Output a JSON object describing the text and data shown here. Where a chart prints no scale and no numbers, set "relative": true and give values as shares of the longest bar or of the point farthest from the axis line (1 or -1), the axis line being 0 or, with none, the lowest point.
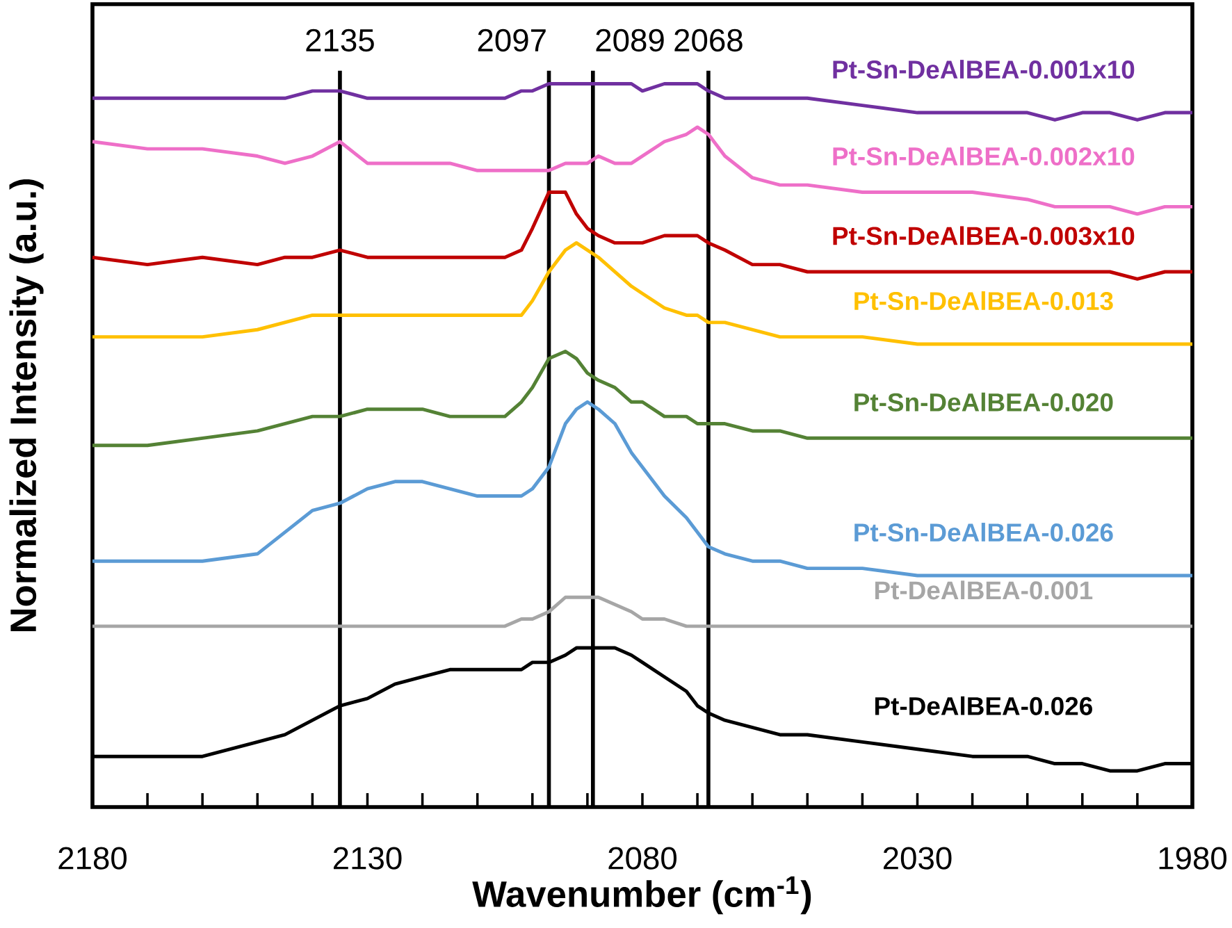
{
  "chart_data": {
    "type": "line",
    "relative": true,
    "xlabel": "Wavenumber (cm$^{-1}$)",
    "ylabel": "Normalized Intensity (a.u.)",
    "xlim": [
      2180,
      1980
    ],
    "xticks": [
      2180,
      2130,
      2080,
      2030,
      1980
    ],
    "x": [
      2180,
      2170,
      2160,
      2150,
      2145,
      2140,
      2135,
      2130,
      2125,
      2120,
      2115,
      2110,
      2105,
      2102,
      2100,
      2097,
      2094,
      2092,
      2090,
      2088,
      2085,
      2082,
      2080,
      2076,
      2072,
      2070,
      2068,
      2065,
      2060,
      2055,
      2050,
      2040,
      2030,
      2020,
      2010,
      2005,
      2000,
      1995,
      1990,
      1985,
      1980
    ],
    "ref_lines": [
      {
        "axis": "x",
        "value": 2135,
        "label": "2135",
        "color": "#000000"
      },
      {
        "axis": "x",
        "value": 2097,
        "label": "2097",
        "color": "#000000"
      },
      {
        "axis": "x",
        "value": 2089,
        "label": "2089",
        "color": "#000000"
      },
      {
        "axis": "x",
        "value": 2068,
        "label": "2068",
        "color": "#000000"
      }
    ],
    "series": [
      {
        "name": "Pt-Sn-DeAlBEA-0.001x10",
        "color": "#7030a0",
        "values": [
          0.98,
          0.98,
          0.98,
          0.98,
          0.98,
          0.99,
          0.99,
          0.98,
          0.98,
          0.98,
          0.98,
          0.98,
          0.98,
          0.99,
          0.99,
          1.0,
          1.0,
          1.0,
          1.0,
          1.0,
          1.0,
          1.0,
          0.99,
          1.0,
          1.0,
          1.0,
          0.99,
          0.98,
          0.98,
          0.98,
          0.98,
          0.97,
          0.96,
          0.96,
          0.96,
          0.95,
          0.96,
          0.96,
          0.95,
          0.96,
          0.96
        ]
      },
      {
        "name": "Pt-Sn-DeAlBEA-0.002x10",
        "color": "#ee6fc8",
        "values": [
          0.92,
          0.91,
          0.91,
          0.9,
          0.89,
          0.9,
          0.92,
          0.89,
          0.89,
          0.89,
          0.89,
          0.88,
          0.88,
          0.88,
          0.88,
          0.88,
          0.89,
          0.89,
          0.89,
          0.9,
          0.89,
          0.89,
          0.9,
          0.92,
          0.93,
          0.94,
          0.93,
          0.9,
          0.87,
          0.86,
          0.86,
          0.85,
          0.85,
          0.85,
          0.84,
          0.83,
          0.83,
          0.83,
          0.82,
          0.83,
          0.83
        ]
      },
      {
        "name": "Pt-Sn-DeAlBEA-0.003x10",
        "color": "#c00000",
        "values": [
          0.76,
          0.75,
          0.76,
          0.75,
          0.76,
          0.76,
          0.77,
          0.76,
          0.76,
          0.76,
          0.76,
          0.76,
          0.76,
          0.77,
          0.8,
          0.85,
          0.85,
          0.82,
          0.8,
          0.79,
          0.78,
          0.78,
          0.78,
          0.79,
          0.79,
          0.79,
          0.78,
          0.77,
          0.75,
          0.75,
          0.74,
          0.74,
          0.74,
          0.74,
          0.74,
          0.74,
          0.74,
          0.74,
          0.73,
          0.74,
          0.74
        ]
      },
      {
        "name": "Pt-Sn-DeAlBEA-0.013",
        "color": "#ffc000",
        "values": [
          0.65,
          0.65,
          0.65,
          0.66,
          0.67,
          0.68,
          0.68,
          0.68,
          0.68,
          0.68,
          0.68,
          0.68,
          0.68,
          0.68,
          0.7,
          0.74,
          0.77,
          0.78,
          0.77,
          0.76,
          0.74,
          0.72,
          0.71,
          0.69,
          0.68,
          0.68,
          0.67,
          0.67,
          0.66,
          0.65,
          0.65,
          0.65,
          0.64,
          0.64,
          0.64,
          0.64,
          0.64,
          0.64,
          0.64,
          0.64,
          0.64
        ]
      },
      {
        "name": "Pt-Sn-DeAlBEA-0.020",
        "color": "#548235",
        "values": [
          0.5,
          0.5,
          0.51,
          0.52,
          0.53,
          0.54,
          0.54,
          0.55,
          0.55,
          0.55,
          0.54,
          0.54,
          0.54,
          0.56,
          0.58,
          0.62,
          0.63,
          0.62,
          0.6,
          0.59,
          0.58,
          0.56,
          0.56,
          0.54,
          0.54,
          0.53,
          0.53,
          0.53,
          0.52,
          0.52,
          0.51,
          0.51,
          0.51,
          0.51,
          0.51,
          0.51,
          0.51,
          0.51,
          0.51,
          0.51,
          0.51
        ]
      },
      {
        "name": "Pt-Sn-DeAlBEA-0.026",
        "color": "#5b9bd5",
        "values": [
          0.34,
          0.34,
          0.34,
          0.35,
          0.38,
          0.41,
          0.42,
          0.44,
          0.45,
          0.45,
          0.44,
          0.43,
          0.43,
          0.43,
          0.44,
          0.47,
          0.53,
          0.55,
          0.56,
          0.55,
          0.53,
          0.49,
          0.47,
          0.43,
          0.4,
          0.38,
          0.36,
          0.35,
          0.34,
          0.34,
          0.33,
          0.33,
          0.32,
          0.32,
          0.32,
          0.32,
          0.32,
          0.32,
          0.32,
          0.32,
          0.32
        ]
      },
      {
        "name": "Pt-DeAlBEA-0.001",
        "color": "#a6a6a6",
        "values": [
          0.25,
          0.25,
          0.25,
          0.25,
          0.25,
          0.25,
          0.25,
          0.25,
          0.25,
          0.25,
          0.25,
          0.25,
          0.25,
          0.26,
          0.26,
          0.27,
          0.29,
          0.29,
          0.29,
          0.29,
          0.28,
          0.27,
          0.26,
          0.26,
          0.25,
          0.25,
          0.25,
          0.25,
          0.25,
          0.25,
          0.25,
          0.25,
          0.25,
          0.25,
          0.25,
          0.25,
          0.25,
          0.25,
          0.25,
          0.25,
          0.25
        ]
      },
      {
        "name": "Pt-DeAlBEA-0.026",
        "color": "#000000",
        "values": [
          0.07,
          0.07,
          0.07,
          0.09,
          0.1,
          0.12,
          0.14,
          0.15,
          0.17,
          0.18,
          0.19,
          0.19,
          0.19,
          0.19,
          0.2,
          0.2,
          0.21,
          0.22,
          0.22,
          0.22,
          0.22,
          0.21,
          0.2,
          0.18,
          0.16,
          0.14,
          0.13,
          0.12,
          0.11,
          0.1,
          0.1,
          0.09,
          0.08,
          0.07,
          0.07,
          0.06,
          0.06,
          0.05,
          0.05,
          0.06,
          0.06
        ]
      }
    ]
  }
}
